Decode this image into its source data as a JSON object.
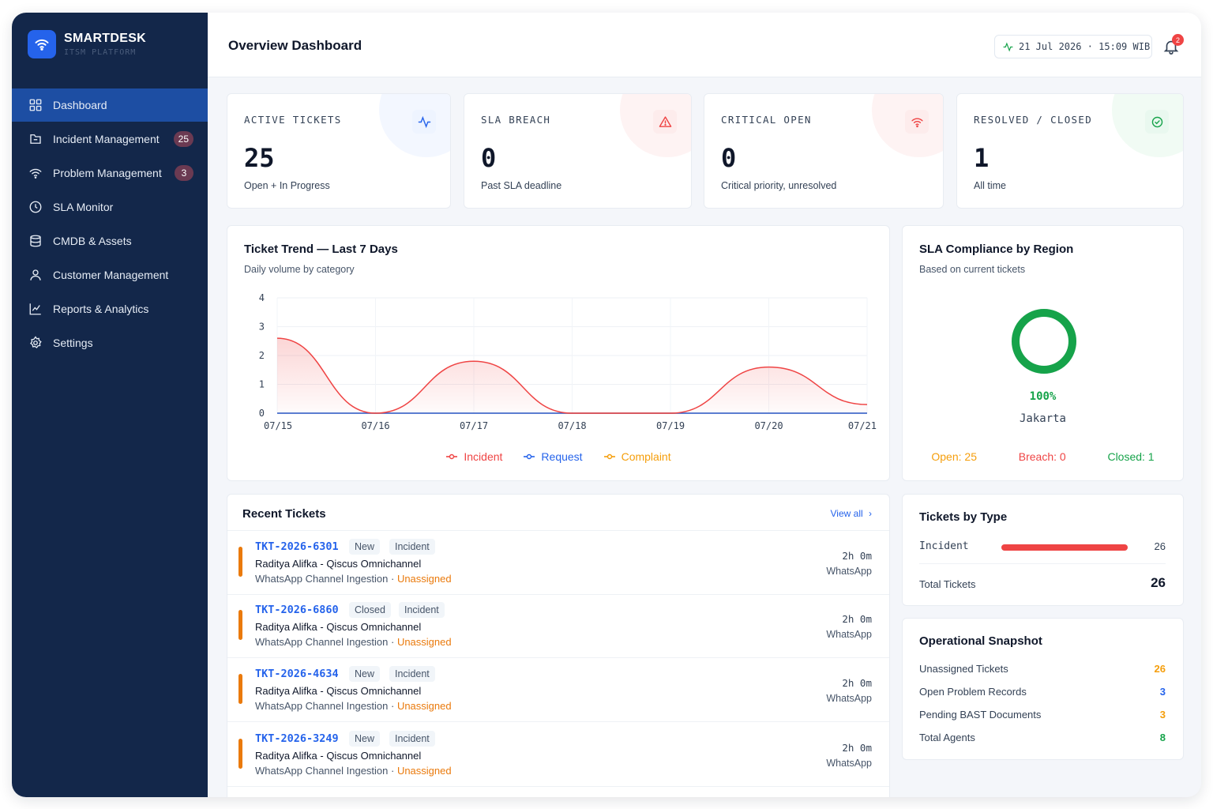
{
  "brand": {
    "name": "SMARTDESK",
    "subtitle": "ITSM PLATFORM"
  },
  "sidebar": {
    "items": [
      {
        "label": "Dashboard",
        "icon": "grid-icon",
        "active": true
      },
      {
        "label": "Incident Management",
        "icon": "incident-icon",
        "badge": "25"
      },
      {
        "label": "Problem Management",
        "icon": "wifi-icon",
        "badge": "3"
      },
      {
        "label": "SLA Monitor",
        "icon": "clock-icon"
      },
      {
        "label": "CMDB & Assets",
        "icon": "database-icon"
      },
      {
        "label": "Customer Management",
        "icon": "user-icon"
      },
      {
        "label": "Reports & Analytics",
        "icon": "chart-icon"
      },
      {
        "label": "Settings",
        "icon": "gear-icon"
      }
    ]
  },
  "header": {
    "title": "Overview Dashboard",
    "datetime": "21 Jul 2026 · 15:09 WIB",
    "notifications": "2"
  },
  "stats": [
    {
      "label": "ACTIVE TICKETS",
      "value": "25",
      "sub": "Open + In Progress",
      "icon": "activity-icon",
      "color": "#2563eb",
      "bg": "#eef4ff",
      "blob": "#f3f7ff"
    },
    {
      "label": "SLA BREACH",
      "value": "0",
      "sub": "Past SLA deadline",
      "icon": "alert-triangle-icon",
      "color": "#ef4444",
      "bg": "#fdecec",
      "blob": "#fef3f3"
    },
    {
      "label": "CRITICAL OPEN",
      "value": "0",
      "sub": "Critical priority, unresolved",
      "icon": "wifi-icon",
      "color": "#ef4444",
      "bg": "#fdecec",
      "blob": "#fef3f3"
    },
    {
      "label": "RESOLVED / CLOSED",
      "value": "1",
      "sub": "All time",
      "icon": "check-circle-icon",
      "color": "#16a34a",
      "bg": "#e9f8ef",
      "blob": "#f1fbf4"
    }
  ],
  "trend": {
    "title": "Ticket Trend — Last 7 Days",
    "subtitle": "Daily volume by category"
  },
  "chart_data": {
    "type": "line",
    "categories": [
      "07/15",
      "07/16",
      "07/17",
      "07/18",
      "07/19",
      "07/20",
      "07/21"
    ],
    "series": [
      {
        "name": "Incident",
        "values": [
          2.6,
          0,
          1.8,
          0,
          0,
          1.6,
          0.3
        ],
        "color": "#ef4444"
      },
      {
        "name": "Request",
        "values": [
          0,
          0,
          0,
          0,
          0,
          0,
          0
        ],
        "color": "#2563eb"
      },
      {
        "name": "Complaint",
        "values": [
          0,
          0,
          0,
          0,
          0,
          0,
          0
        ],
        "color": "#f59e0b"
      }
    ],
    "yticks": [
      "0",
      "1",
      "2",
      "3",
      "4"
    ],
    "ylim": [
      0,
      4
    ],
    "grid": true,
    "legend": "bottom-center"
  },
  "sla": {
    "title": "SLA Compliance by Region",
    "subtitle": "Based on current tickets",
    "percent": "100%",
    "fraction": 1.0,
    "region": "Jakarta",
    "open": "Open: 25",
    "breach": "Breach: 0",
    "closed": "Closed: 1"
  },
  "recent": {
    "title": "Recent Tickets",
    "view_all": "View all",
    "tickets": [
      {
        "id": "TKT-2026-6301",
        "status": "New",
        "type": "Incident",
        "name": "Raditya Alifka - Qiscus Omnichannel",
        "meta": "WhatsApp Channel Ingestion · ",
        "assignee": "Unassigned",
        "time": "2h 0m",
        "channel": "WhatsApp"
      },
      {
        "id": "TKT-2026-6860",
        "status": "Closed",
        "type": "Incident",
        "name": "Raditya Alifka - Qiscus Omnichannel",
        "meta": "WhatsApp Channel Ingestion · ",
        "assignee": "Unassigned",
        "time": "2h 0m",
        "channel": "WhatsApp"
      },
      {
        "id": "TKT-2026-4634",
        "status": "New",
        "type": "Incident",
        "name": "Raditya Alifka - Qiscus Omnichannel",
        "meta": "WhatsApp Channel Ingestion · ",
        "assignee": "Unassigned",
        "time": "2h 0m",
        "channel": "WhatsApp"
      },
      {
        "id": "TKT-2026-3249",
        "status": "New",
        "type": "Incident",
        "name": "Raditya Alifka - Qiscus Omnichannel",
        "meta": "WhatsApp Channel Ingestion · ",
        "assignee": "Unassigned",
        "time": "2h 0m",
        "channel": "WhatsApp"
      }
    ]
  },
  "by_type": {
    "title": "Tickets by Type",
    "row_label": "Incident",
    "row_value": "26",
    "row_fraction": 1.0,
    "total_label": "Total Tickets",
    "total_value": "26"
  },
  "snapshot": {
    "title": "Operational Snapshot",
    "rows": [
      {
        "label": "Unassigned Tickets",
        "value": "26",
        "color": "#f59e0b"
      },
      {
        "label": "Open Problem Records",
        "value": "3",
        "color": "#2563eb"
      },
      {
        "label": "Pending BAST Documents",
        "value": "3",
        "color": "#f59e0b"
      },
      {
        "label": "Total Agents",
        "value": "8",
        "color": "#16a34a"
      }
    ]
  }
}
